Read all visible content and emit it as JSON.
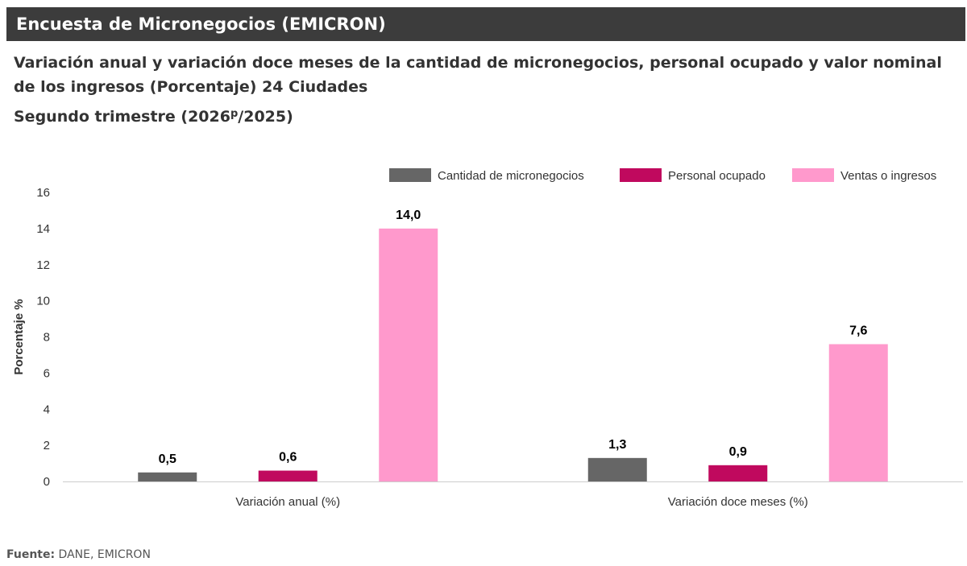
{
  "header": {
    "title": "Encuesta de Micronegocios (EMICRON)"
  },
  "chart_title": "Variación anual y variación doce meses de la cantidad de micronegocios, personal ocupado y valor nominal de los ingresos (Porcentaje) 24 Ciudades",
  "chart_subtitle_pre": "Segundo trimestre (2026",
  "chart_subtitle_sup": "p",
  "chart_subtitle_post": "/2025)",
  "footer": {
    "label": "Fuente:",
    "text": " DANE, EMICRON"
  },
  "chart_data": {
    "type": "bar",
    "categories": [
      "Variación anual (%)",
      "Variación doce meses (%)"
    ],
    "series": [
      {
        "name": "Cantidad de micronegocios",
        "values": [
          0.5,
          1.3
        ],
        "labels": [
          "0,5",
          "1,3"
        ],
        "color": "#666666"
      },
      {
        "name": "Personal ocupado",
        "values": [
          0.6,
          0.9
        ],
        "labels": [
          "0,6",
          "0,9"
        ],
        "color": "#c0095e"
      },
      {
        "name": "Ventas o ingresos",
        "values": [
          14.0,
          7.6
        ],
        "labels": [
          "14,0",
          "7,6"
        ],
        "color": "#ff99cc"
      }
    ],
    "ylabel": "Porcentaje %",
    "ylim": [
      0,
      16
    ],
    "yticks": [
      0,
      2,
      4,
      6,
      8,
      10,
      12,
      14,
      16
    ],
    "grid": false,
    "legend": "top-right"
  }
}
